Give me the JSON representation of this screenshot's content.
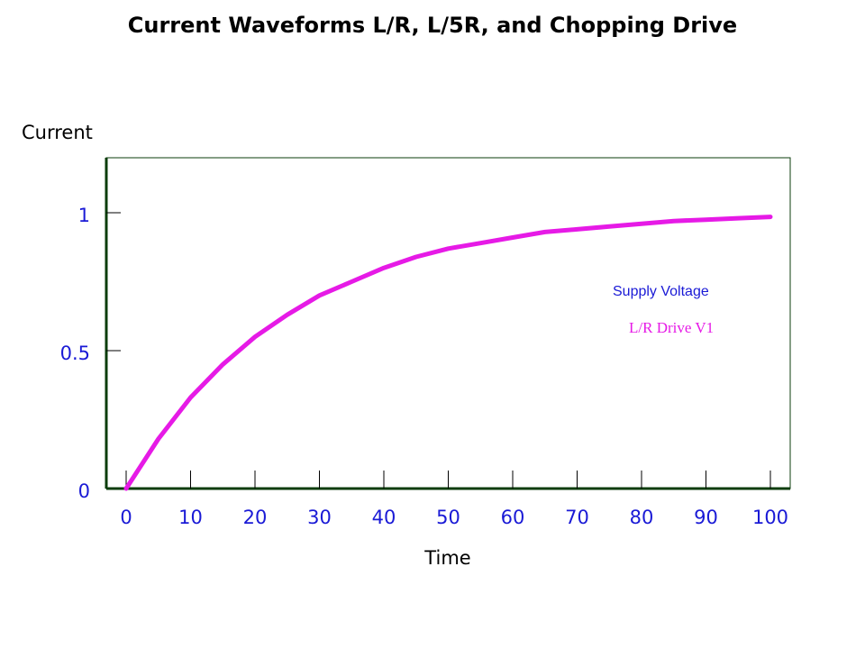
{
  "chart_data": {
    "type": "line",
    "title": "Current Waveforms L/R, L/5R, and Chopping Drive",
    "ylabel": "Current",
    "xlabel": "Time",
    "xlim": [
      0,
      100
    ],
    "ylim": [
      0,
      1.2
    ],
    "x_ticks": [
      0,
      10,
      20,
      30,
      40,
      50,
      60,
      70,
      80,
      90,
      100
    ],
    "x_tick_labels": [
      "0",
      "10",
      "20",
      "30",
      "40",
      "50",
      "60",
      "70",
      "80",
      "90",
      "100"
    ],
    "y_ticks": [
      0,
      0.5,
      1
    ],
    "y_tick_labels": [
      "0",
      "0.5",
      "1"
    ],
    "series": [
      {
        "name": "L/R Drive  V1",
        "color": "#e61ae6",
        "x": [
          0,
          5,
          10,
          15,
          20,
          25,
          30,
          35,
          40,
          45,
          50,
          55,
          60,
          65,
          70,
          75,
          80,
          85,
          90,
          95,
          100
        ],
        "y": [
          0.0,
          0.18,
          0.33,
          0.45,
          0.55,
          0.63,
          0.7,
          0.75,
          0.8,
          0.84,
          0.87,
          0.89,
          0.91,
          0.93,
          0.94,
          0.95,
          0.96,
          0.97,
          0.975,
          0.98,
          0.985
        ]
      }
    ],
    "annotations": [
      "Supply Voltage",
      "L/R Drive  V1"
    ]
  },
  "colors": {
    "axis": "#0b3d0b",
    "tick_label": "#1a1ad6",
    "series": "#e61ae6"
  }
}
